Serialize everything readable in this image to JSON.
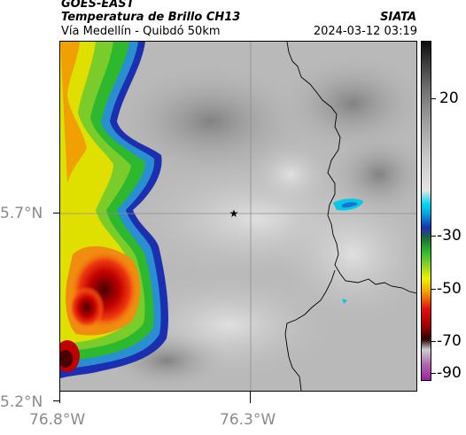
{
  "header": {
    "product": "GOES-EAST",
    "title": "Temperatura de Brillo CH13",
    "route": "Vía Medellín - Quibdó 50km",
    "source": "SIATA",
    "datetime": "2024-03-12 03:19"
  },
  "axes": {
    "lat_labels": [
      "5.7°N",
      "5.2°N"
    ],
    "lon_labels": [
      "76.8°W",
      "76.3°W"
    ]
  },
  "colorbar": {
    "labels": [
      "20",
      "-30",
      "-50",
      "-70",
      "-90"
    ],
    "colors": {
      "warm_top": "#1a1a1a",
      "gray_mid": "#9a9a9a",
      "gray_low": "#d8d8d8",
      "cyan": "#00c8e6",
      "blue": "#1c2fb0",
      "green": "#2db82d",
      "yellow": "#f0f000",
      "red": "#e01010",
      "dark_red": "#3c0000",
      "magenta": "#a020a0"
    }
  },
  "map": {
    "marker": "star-icon",
    "colors": {
      "background": "#bdbdbd",
      "cloud_light": "#dcdcdc",
      "cloud_dark": "#8c8c8c",
      "border": "#000000",
      "grid": "#9a9a9a"
    }
  }
}
